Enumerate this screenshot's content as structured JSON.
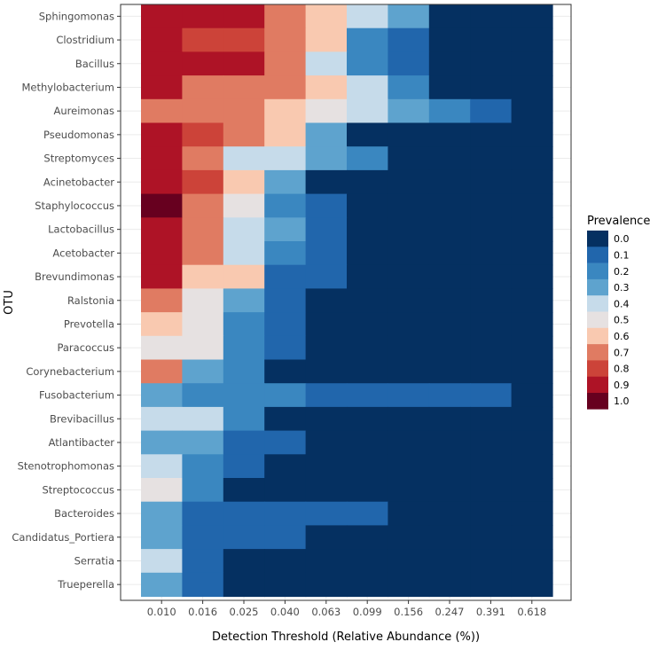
{
  "chart_data": {
    "type": "heatmap",
    "title": "",
    "xlabel": "Detection Threshold (Relative Abundance (%))",
    "ylabel": "OTU",
    "x_categories": [
      "0.010",
      "0.016",
      "0.025",
      "0.040",
      "0.063",
      "0.099",
      "0.156",
      "0.247",
      "0.391",
      "0.618"
    ],
    "y_categories": [
      "Sphingomonas",
      "Clostridium",
      "Bacillus",
      "Methylobacterium",
      "Aureimonas",
      "Pseudomonas",
      "Streptomyces",
      "Acinetobacter",
      "Staphylococcus",
      "Lactobacillus",
      "Acetobacter",
      "Brevundimonas",
      "Ralstonia",
      "Prevotella",
      "Paracoccus",
      "Corynebacterium",
      "Fusobacterium",
      "Brevibacillus",
      "Atlantibacter",
      "Stenotrophomonas",
      "Streptococcus",
      "Bacteroides",
      "Candidatus_Portiera",
      "Serratia",
      "Trueperella"
    ],
    "values": [
      [
        0.9,
        0.9,
        0.9,
        0.7,
        0.6,
        0.4,
        0.3,
        0.0,
        0.0,
        0.0
      ],
      [
        0.9,
        0.8,
        0.8,
        0.7,
        0.6,
        0.2,
        0.1,
        0.0,
        0.0,
        0.0
      ],
      [
        0.9,
        0.9,
        0.9,
        0.7,
        0.35,
        0.2,
        0.1,
        0.0,
        0.0,
        0.0
      ],
      [
        0.9,
        0.7,
        0.65,
        0.65,
        0.6,
        0.35,
        0.2,
        0.0,
        0.0,
        0.0
      ],
      [
        0.7,
        0.65,
        0.65,
        0.6,
        0.5,
        0.4,
        0.3,
        0.2,
        0.1,
        0.0
      ],
      [
        0.9,
        0.8,
        0.7,
        0.6,
        0.3,
        0.0,
        0.0,
        0.0,
        0.0,
        0.0
      ],
      [
        0.9,
        0.65,
        0.4,
        0.35,
        0.3,
        0.2,
        0.0,
        0.0,
        0.0,
        0.0
      ],
      [
        0.9,
        0.8,
        0.6,
        0.3,
        0.0,
        0.0,
        0.0,
        0.0,
        0.0,
        0.0
      ],
      [
        1.0,
        0.7,
        0.5,
        0.2,
        0.1,
        0.0,
        0.0,
        0.0,
        0.0,
        0.0
      ],
      [
        0.9,
        0.65,
        0.4,
        0.3,
        0.1,
        0.0,
        0.0,
        0.0,
        0.0,
        0.0
      ],
      [
        0.9,
        0.7,
        0.35,
        0.2,
        0.1,
        0.0,
        0.0,
        0.0,
        0.0,
        0.0
      ],
      [
        0.9,
        0.6,
        0.6,
        0.1,
        0.1,
        0.0,
        0.0,
        0.0,
        0.0,
        0.0
      ],
      [
        0.7,
        0.5,
        0.3,
        0.1,
        0.0,
        0.0,
        0.0,
        0.0,
        0.0,
        0.0
      ],
      [
        0.6,
        0.5,
        0.2,
        0.1,
        0.0,
        0.0,
        0.0,
        0.0,
        0.0,
        0.0
      ],
      [
        0.5,
        0.5,
        0.2,
        0.1,
        0.0,
        0.0,
        0.0,
        0.0,
        0.0,
        0.0
      ],
      [
        0.7,
        0.3,
        0.2,
        0.0,
        0.0,
        0.0,
        0.0,
        0.0,
        0.0,
        0.0
      ],
      [
        0.3,
        0.15,
        0.15,
        0.15,
        0.1,
        0.1,
        0.1,
        0.1,
        0.1,
        0.0
      ],
      [
        0.4,
        0.35,
        0.2,
        0.0,
        0.0,
        0.0,
        0.0,
        0.0,
        0.0,
        0.0
      ],
      [
        0.3,
        0.3,
        0.1,
        0.1,
        0.0,
        0.0,
        0.0,
        0.0,
        0.0,
        0.0
      ],
      [
        0.4,
        0.2,
        0.1,
        0.0,
        0.0,
        0.0,
        0.0,
        0.0,
        0.0,
        0.0
      ],
      [
        0.5,
        0.2,
        0.0,
        0.0,
        0.0,
        0.0,
        0.0,
        0.0,
        0.0,
        0.0
      ],
      [
        0.3,
        0.1,
        0.1,
        0.1,
        0.1,
        0.1,
        0.0,
        0.0,
        0.0,
        0.0
      ],
      [
        0.3,
        0.1,
        0.1,
        0.1,
        0.0,
        0.0,
        0.0,
        0.0,
        0.0,
        0.0
      ],
      [
        0.4,
        0.1,
        0.0,
        0.0,
        0.0,
        0.0,
        0.0,
        0.0,
        0.0,
        0.0
      ],
      [
        0.3,
        0.1,
        0.0,
        0.0,
        0.0,
        0.0,
        0.0,
        0.0,
        0.0,
        0.0
      ]
    ],
    "value_range": [
      0.0,
      1.0
    ],
    "legend": {
      "title": "Prevalence",
      "placement": "right",
      "labels": [
        "0.0",
        "0.1",
        "0.2",
        "0.3",
        "0.4",
        "0.5",
        "0.6",
        "0.7",
        "0.8",
        "0.9",
        "1.0"
      ],
      "colors": [
        "#053061",
        "#2166ac",
        "#3a87c0",
        "#5ea3ce",
        "#c6dbea",
        "#e6e1e1",
        "#f9c9b0",
        "#e07b62",
        "#cc4339",
        "#ae1326",
        "#67001f"
      ]
    },
    "grid": true
  }
}
